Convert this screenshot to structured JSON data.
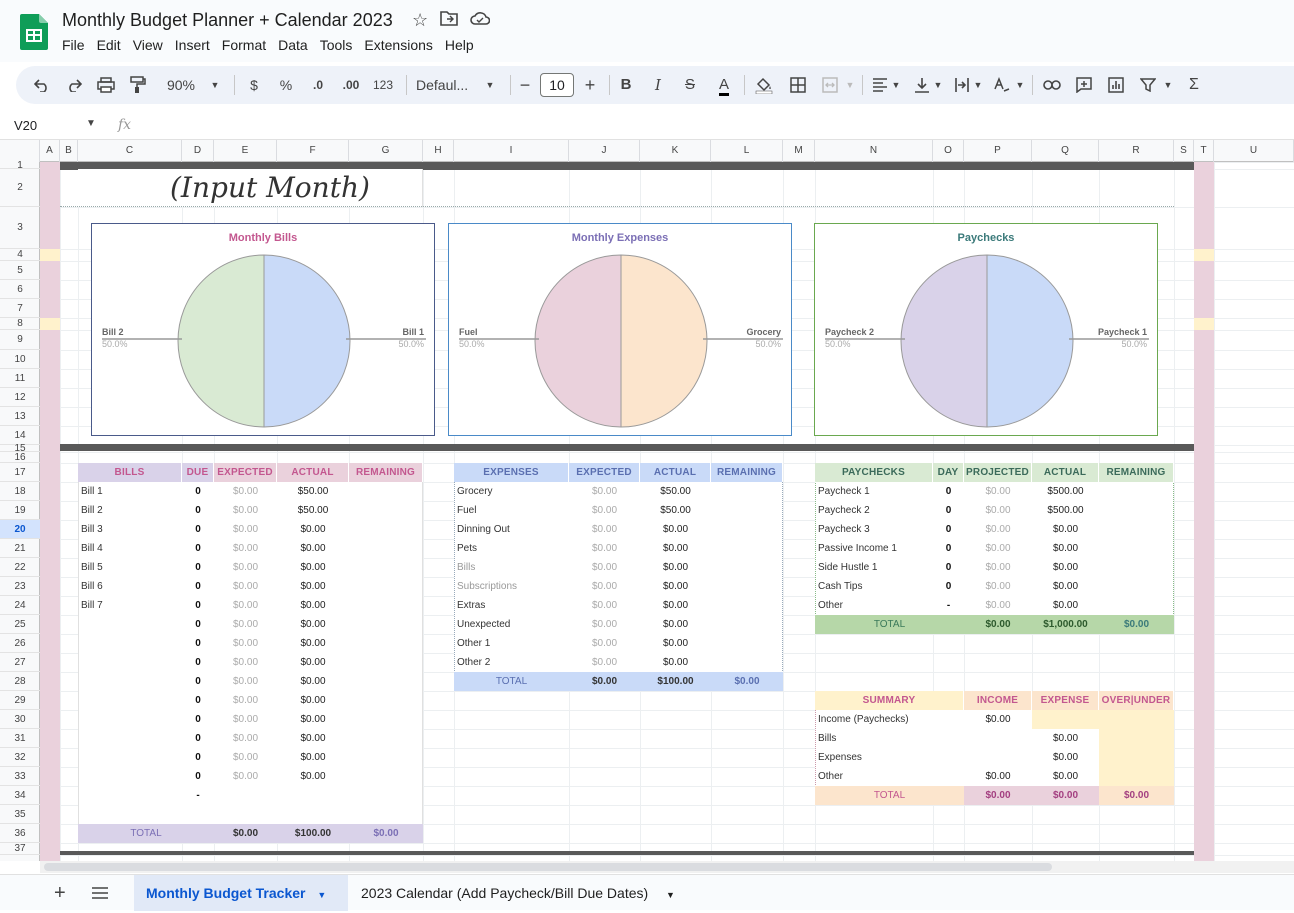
{
  "title_bar": {
    "doc_title": "Monthly Budget Planner + Calendar 2023",
    "menus": [
      "File",
      "Edit",
      "View",
      "Insert",
      "Format",
      "Data",
      "Tools",
      "Extensions",
      "Help"
    ]
  },
  "toolbar": {
    "zoom": "90%",
    "currency": "$",
    "percent": "%",
    "dec_less": ".0",
    "dec_more": ".00",
    "number_format": "123",
    "font": "Defaul...",
    "font_size": "10",
    "minus": "−",
    "plus": "+",
    "bold": "B",
    "italic": "I",
    "strike": "S",
    "text_color_a": "A",
    "sum": "Σ"
  },
  "formula_bar": {
    "name_box": "V20",
    "fx": "fx"
  },
  "columns": [
    "A",
    "B",
    "C",
    "D",
    "E",
    "F",
    "G",
    "H",
    "I",
    "J",
    "K",
    "L",
    "M",
    "N",
    "O",
    "P",
    "Q",
    "R",
    "S",
    "T",
    "U"
  ],
  "rows": [
    "1",
    "2",
    "3",
    "4",
    "5",
    "6",
    "7",
    "8",
    "9",
    "10",
    "11",
    "12",
    "13",
    "14",
    "15",
    "16",
    "17",
    "18",
    "19",
    "20",
    "21",
    "22",
    "23",
    "24",
    "25",
    "26",
    "27",
    "28",
    "29",
    "30",
    "31",
    "32",
    "33",
    "34",
    "35",
    "36",
    "37"
  ],
  "selected_row": "20",
  "month_input": "(Input Month)",
  "charts": [
    {
      "title": "Monthly Bills",
      "color": "#c3578f",
      "left_label": "Bill 2",
      "left_pct": "50.0%",
      "right_label": "Bill 1",
      "right_pct": "50.0%",
      "left_fill": "#d9ead3",
      "right_fill": "#c9daf8",
      "border": "#4a5a8a"
    },
    {
      "title": "Monthly Expenses",
      "color": "#7b6fb5",
      "left_label": "Fuel",
      "left_pct": "50.0%",
      "right_label": "Grocery",
      "right_pct": "50.0%",
      "left_fill": "#ead1dc",
      "right_fill": "#fce5cd",
      "border": "#4a8ac8"
    },
    {
      "title": "Paychecks",
      "color": "#3b7a7a",
      "left_label": "Paycheck 2",
      "left_pct": "50.0%",
      "right_label": "Paycheck 1",
      "right_pct": "50.0%",
      "left_fill": "#d9d2e9",
      "right_fill": "#c9daf8",
      "border": "#6aa84f"
    }
  ],
  "bills": {
    "headers": [
      "BILLS",
      "DUE",
      "EXPECTED",
      "ACTUAL",
      "REMAINING"
    ],
    "rows": [
      [
        "Bill 1",
        "0",
        "$0.00",
        "$50.00"
      ],
      [
        "Bill 2",
        "0",
        "$0.00",
        "$50.00"
      ],
      [
        "Bill 3",
        "0",
        "$0.00",
        "$0.00"
      ],
      [
        "Bill 4",
        "0",
        "$0.00",
        "$0.00"
      ],
      [
        "Bill 5",
        "0",
        "$0.00",
        "$0.00"
      ],
      [
        "Bill 6",
        "0",
        "$0.00",
        "$0.00"
      ],
      [
        "Bill 7",
        "0",
        "$0.00",
        "$0.00"
      ],
      [
        "",
        "0",
        "$0.00",
        "$0.00"
      ],
      [
        "",
        "0",
        "$0.00",
        "$0.00"
      ],
      [
        "",
        "0",
        "$0.00",
        "$0.00"
      ],
      [
        "",
        "0",
        "$0.00",
        "$0.00"
      ],
      [
        "",
        "0",
        "$0.00",
        "$0.00"
      ],
      [
        "",
        "0",
        "$0.00",
        "$0.00"
      ],
      [
        "",
        "0",
        "$0.00",
        "$0.00"
      ],
      [
        "",
        "0",
        "$0.00",
        "$0.00"
      ],
      [
        "",
        "0",
        "$0.00",
        "$0.00"
      ],
      [
        "",
        "-",
        "",
        ""
      ]
    ],
    "total": [
      "TOTAL",
      "$0.00",
      "$100.00",
      "$0.00"
    ]
  },
  "expenses": {
    "headers": [
      "EXPENSES",
      "EXPECTED",
      "ACTUAL",
      "REMAINING"
    ],
    "rows": [
      [
        "Grocery",
        "$0.00",
        "$50.00"
      ],
      [
        "Fuel",
        "$0.00",
        "$50.00"
      ],
      [
        "Dinning Out",
        "$0.00",
        "$0.00"
      ],
      [
        "Pets",
        "$0.00",
        "$0.00"
      ],
      [
        "Bills",
        "$0.00",
        "$0.00"
      ],
      [
        "Subscriptions",
        "$0.00",
        "$0.00"
      ],
      [
        "Extras",
        "$0.00",
        "$0.00"
      ],
      [
        "Unexpected",
        "$0.00",
        "$0.00"
      ],
      [
        "Other 1",
        "$0.00",
        "$0.00"
      ],
      [
        "Other 2",
        "$0.00",
        "$0.00"
      ]
    ],
    "total": [
      "TOTAL",
      "$0.00",
      "$100.00",
      "$0.00"
    ]
  },
  "paychecks": {
    "headers": [
      "PAYCHECKS",
      "DAY",
      "PROJECTED",
      "ACTUAL",
      "REMAINING"
    ],
    "rows": [
      [
        "Paycheck 1",
        "0",
        "$0.00",
        "$500.00"
      ],
      [
        "Paycheck 2",
        "0",
        "$0.00",
        "$500.00"
      ],
      [
        "Paycheck 3",
        "0",
        "$0.00",
        "$0.00"
      ],
      [
        "Passive Income 1",
        "0",
        "$0.00",
        "$0.00"
      ],
      [
        "Side Hustle 1",
        "0",
        "$0.00",
        "$0.00"
      ],
      [
        "Cash Tips",
        "0",
        "$0.00",
        "$0.00"
      ],
      [
        "Other",
        "-",
        "$0.00",
        "$0.00"
      ]
    ],
    "total": [
      "TOTAL",
      "$0.00",
      "$1,000.00",
      "$0.00"
    ]
  },
  "summary": {
    "headers": [
      "SUMMARY",
      "INCOME",
      "EXPENSE",
      "OVER|UNDER"
    ],
    "rows": [
      [
        "Income (Paychecks)",
        "$0.00",
        ""
      ],
      [
        "Bills",
        "",
        "$0.00"
      ],
      [
        "Expenses",
        "",
        "$0.00"
      ],
      [
        "Other",
        "$0.00",
        "$0.00"
      ]
    ],
    "total": [
      "TOTAL",
      "$0.00",
      "$0.00",
      "$0.00"
    ]
  },
  "sheet_tabs": [
    "Monthly Budget Tracker",
    "2023 Calendar (Add Paycheck/Bill Due Dates)"
  ]
}
